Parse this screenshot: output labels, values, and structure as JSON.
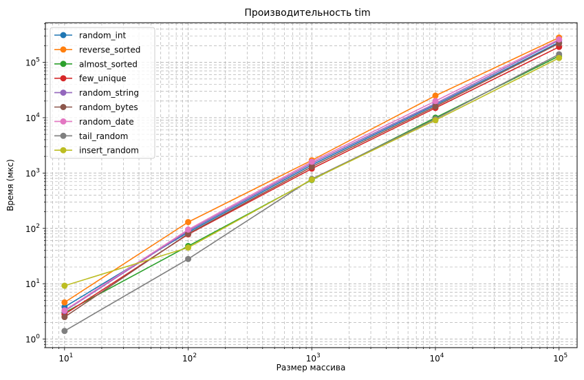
{
  "chart_data": {
    "type": "line",
    "title": "Производительность tim",
    "xlabel": "Размер массива",
    "ylabel": "Время (мкс)",
    "x_scale": "log",
    "y_scale": "log",
    "xlim": [
      7,
      140000
    ],
    "ylim": [
      0.7,
      520000
    ],
    "grid": true,
    "legend_position": "upper-left",
    "x": [
      10,
      100,
      1000,
      10000,
      100000
    ],
    "x_tick_labels": [
      {
        "base": "10",
        "exp": "1"
      },
      {
        "base": "10",
        "exp": "2"
      },
      {
        "base": "10",
        "exp": "3"
      },
      {
        "base": "10",
        "exp": "4"
      },
      {
        "base": "10",
        "exp": "5"
      }
    ],
    "y_ticks": [
      1,
      10,
      100,
      1000,
      10000,
      100000
    ],
    "y_tick_labels": [
      {
        "base": "10",
        "exp": "0"
      },
      {
        "base": "10",
        "exp": "1"
      },
      {
        "base": "10",
        "exp": "2"
      },
      {
        "base": "10",
        "exp": "3"
      },
      {
        "base": "10",
        "exp": "4"
      },
      {
        "base": "10",
        "exp": "5"
      }
    ],
    "series": [
      {
        "name": "random_int",
        "color": "#1f77b4",
        "values": [
          3.8,
          85,
          1400,
          17000,
          230000
        ]
      },
      {
        "name": "reverse_sorted",
        "color": "#ff7f0e",
        "values": [
          4.6,
          130,
          1700,
          25000,
          280000
        ]
      },
      {
        "name": "almost_sorted",
        "color": "#2ca02c",
        "values": [
          3.0,
          48,
          750,
          10000,
          130000
        ]
      },
      {
        "name": "few_unique",
        "color": "#d62728",
        "values": [
          2.8,
          78,
          1200,
          15000,
          190000
        ]
      },
      {
        "name": "random_string",
        "color": "#9467bd",
        "values": [
          3.2,
          90,
          1500,
          18000,
          250000
        ]
      },
      {
        "name": "random_bytes",
        "color": "#8c564b",
        "values": [
          2.5,
          80,
          1300,
          16000,
          220000
        ]
      },
      {
        "name": "random_date",
        "color": "#e377c2",
        "values": [
          3.3,
          95,
          1600,
          20000,
          260000
        ]
      },
      {
        "name": "tail_random",
        "color": "#7f7f7f",
        "values": [
          1.4,
          28,
          780,
          9500,
          140000
        ]
      },
      {
        "name": "insert_random",
        "color": "#bcbd22",
        "values": [
          9.2,
          45,
          760,
          9000,
          120000
        ]
      }
    ]
  }
}
